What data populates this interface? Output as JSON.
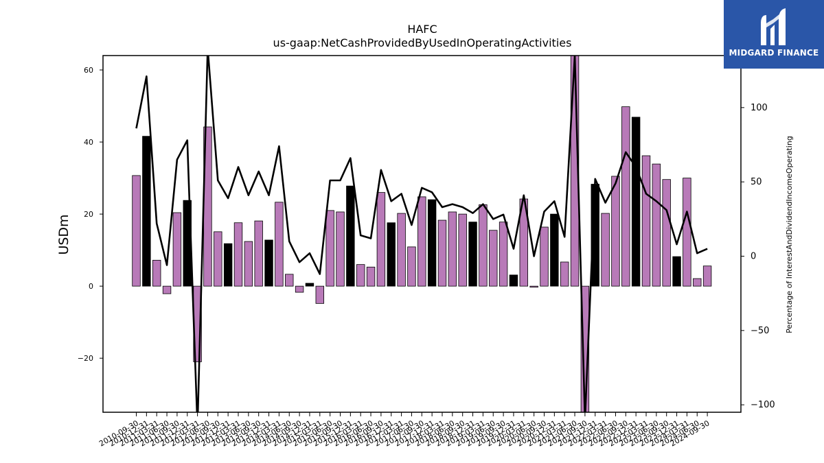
{
  "brand": {
    "name": "MIDGARD FINANCE",
    "logo_icon": "midgard-m-logo-icon",
    "bg_color": "#2a56a8"
  },
  "colors": {
    "bar_default": "#b87ab8",
    "bar_highlight": "#000000",
    "line": "#000000"
  },
  "chart_data": {
    "type": "bar",
    "title": "HAFC",
    "subtitle": "us-gaap:NetCashProvidedByUsedInOperatingActivities",
    "ylabel": "USDm",
    "y2label": "Percentage of InterestAndDividendIncomeOperating",
    "ylim": [
      -35,
      64
    ],
    "y2lim": [
      -105,
      135
    ],
    "yticks": [
      -20,
      0,
      20,
      40,
      60
    ],
    "y2ticks": [
      -100,
      -50,
      0,
      50,
      100
    ],
    "grid": false,
    "categories": [
      "2010-09-30",
      "2010-12-31",
      "2011-03-31",
      "2011-06-30",
      "2011-09-30",
      "2011-12-31",
      "2012-03-31",
      "2012-06-30",
      "2012-09-30",
      "2012-12-31",
      "2013-03-31",
      "2013-06-30",
      "2013-09-30",
      "2013-12-31",
      "2014-03-31",
      "2014-06-30",
      "2014-09-30",
      "2014-12-31",
      "2015-03-31",
      "2015-06-30",
      "2015-09-30",
      "2015-12-31",
      "2016-03-31",
      "2016-06-30",
      "2016-09-30",
      "2016-12-31",
      "2017-03-31",
      "2017-06-30",
      "2017-09-30",
      "2017-12-31",
      "2018-03-31",
      "2018-06-30",
      "2018-09-30",
      "2018-12-31",
      "2019-03-31",
      "2019-06-30",
      "2019-09-30",
      "2019-12-31",
      "2020-03-31",
      "2020-06-30",
      "2020-09-30",
      "2020-12-31",
      "2021-03-31",
      "2021-06-30",
      "2021-09-30",
      "2021-12-31",
      "2022-03-31",
      "2022-06-30",
      "2022-09-30",
      "2022-12-31",
      "2023-03-31",
      "2023-06-30",
      "2023-09-30",
      "2023-12-31",
      "2024-03-31",
      "2024-06-30",
      "2024-09-30"
    ],
    "category_labels": [
      "2010-09-30",
      "2010-12-31",
      "2011-03-31",
      "2011-06-30",
      "2011-09-30",
      "2011-12-31",
      "2012-03-31",
      "2012-06-30",
      "2012-09-30",
      "2012-12-31",
      "2013-03-31",
      "2013-06-30",
      "2013-09-30",
      "2013-12-31",
      "2014-03-31",
      "2014-06-30",
      "2014-09-30",
      "2014-12-31",
      "2015-03-31",
      "2015-06-30",
      "2015-09-30",
      "2015-12-31",
      "2016-03-31",
      "2016-06-30",
      "2016-09-30",
      "2016-12-31",
      "2017-03-31",
      "2017-06-30",
      "2017-09-30",
      "2017-12-31",
      "2018-03-31",
      "2018-06-30",
      "2018-09-30",
      "2018-12-31",
      "2019-03-31",
      "2019-06-30",
      "2019-09-30",
      "2019-12-31",
      "2020-03-31",
      "2020-06-30",
      "2020-09-30",
      "2020-12-31",
      "2021-03-31",
      "2021-06-30",
      "2021-09-30",
      "2021-12-31",
      "2022-03-31",
      "2022-06-30",
      "2022-09-30",
      "2022-12-31",
      "2023-03-31",
      "2023-06-30",
      "2023-09-30",
      "2023-12-31",
      "2024-03-31",
      "2024-06-30",
      "2024-09-30"
    ],
    "series": [
      {
        "type": "bar",
        "values": [
          30.7,
          41.6,
          7.2,
          -2.1,
          20.4,
          23.8,
          -21.0,
          44.2,
          15.1,
          11.8,
          17.6,
          12.4,
          18.1,
          12.8,
          23.3,
          3.3,
          -1.7,
          0.8,
          -4.8,
          21.0,
          20.6,
          27.8,
          6.0,
          5.3,
          26.0,
          17.6,
          20.2,
          10.9,
          24.8,
          24.0,
          18.3,
          20.6,
          20.0,
          17.8,
          22.6,
          15.5,
          17.8,
          3.1,
          24.2,
          -0.3,
          16.4,
          20.0,
          6.7,
          64.0,
          -35.0,
          28.3,
          20.2,
          30.5,
          49.8,
          46.9,
          36.2,
          33.9,
          29.6,
          8.2,
          30.0,
          2.1,
          5.6
        ],
        "highlight": [
          false,
          true,
          false,
          false,
          false,
          true,
          false,
          false,
          false,
          true,
          false,
          false,
          false,
          true,
          false,
          false,
          false,
          true,
          false,
          false,
          false,
          true,
          false,
          false,
          false,
          true,
          false,
          false,
          false,
          true,
          false,
          false,
          false,
          true,
          false,
          false,
          false,
          true,
          false,
          false,
          false,
          true,
          false,
          false,
          false,
          true,
          false,
          false,
          false,
          true,
          false,
          false,
          false,
          true,
          false,
          false,
          false
        ]
      },
      {
        "type": "line",
        "axis": "right",
        "values": [
          86,
          121,
          22,
          -6,
          65,
          78,
          -115,
          140,
          51,
          39,
          60,
          41,
          57,
          41,
          74,
          10,
          -4,
          2,
          -12,
          51,
          51,
          66,
          14,
          12,
          58,
          37,
          42,
          21,
          46,
          43,
          33,
          35,
          33,
          29,
          35,
          25,
          28,
          5,
          41,
          0,
          30,
          37,
          13,
          135,
          -110,
          52,
          36,
          49,
          70,
          60,
          42,
          37,
          31,
          8,
          30,
          2,
          5
        ]
      }
    ]
  }
}
